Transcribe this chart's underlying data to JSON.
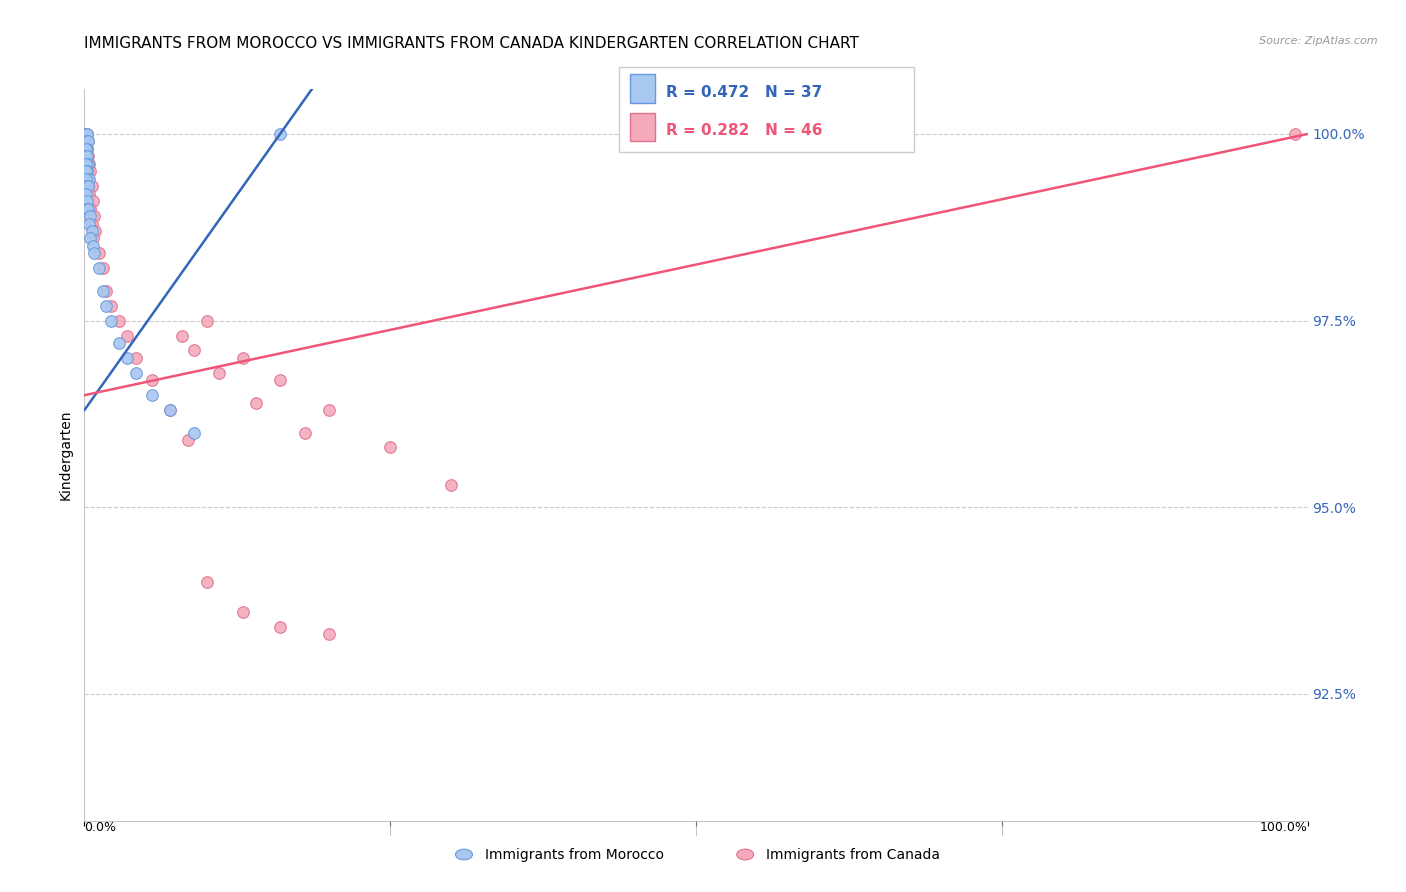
{
  "title": "IMMIGRANTS FROM MOROCCO VS IMMIGRANTS FROM CANADA KINDERGARTEN CORRELATION CHART",
  "source": "Source: ZipAtlas.com",
  "ylabel": "Kindergarten",
  "ytick_labels": [
    "100.0%",
    "97.5%",
    "95.0%",
    "92.5%"
  ],
  "ytick_values": [
    1.0,
    0.975,
    0.95,
    0.925
  ],
  "xlim": [
    0.0,
    1.0
  ],
  "ylim": [
    0.908,
    1.006
  ],
  "legend1_label": "R = 0.472   N = 37",
  "legend2_label": "R = 0.282   N = 46",
  "legend_bottom_label1": "Immigrants from Morocco",
  "legend_bottom_label2": "Immigrants from Canada",
  "morocco_color": "#A8C8F0",
  "canada_color": "#F4AABB",
  "morocco_edge": "#6699DD",
  "canada_edge": "#E07090",
  "background_color": "#ffffff",
  "grid_color": "#cccccc",
  "morocco_x": [
    0.001,
    0.002,
    0.001,
    0.003,
    0.002,
    0.001,
    0.001,
    0.002,
    0.003,
    0.001,
    0.002,
    0.001,
    0.004,
    0.001,
    0.002,
    0.003,
    0.001,
    0.002,
    0.001,
    0.003,
    0.005,
    0.004,
    0.006,
    0.005,
    0.007,
    0.008,
    0.012,
    0.015,
    0.018,
    0.022,
    0.028,
    0.035,
    0.042,
    0.055,
    0.07,
    0.09,
    0.16
  ],
  "morocco_y": [
    1.0,
    1.0,
    0.999,
    0.999,
    0.998,
    0.998,
    0.997,
    0.997,
    0.996,
    0.996,
    0.995,
    0.995,
    0.994,
    0.994,
    0.993,
    0.993,
    0.992,
    0.991,
    0.99,
    0.99,
    0.989,
    0.988,
    0.987,
    0.986,
    0.985,
    0.984,
    0.982,
    0.979,
    0.977,
    0.975,
    0.972,
    0.97,
    0.968,
    0.965,
    0.963,
    0.96,
    1.0
  ],
  "canada_x": [
    0.001,
    0.002,
    0.001,
    0.003,
    0.002,
    0.001,
    0.003,
    0.002,
    0.004,
    0.001,
    0.005,
    0.003,
    0.006,
    0.004,
    0.007,
    0.005,
    0.008,
    0.006,
    0.009,
    0.007,
    0.012,
    0.015,
    0.018,
    0.022,
    0.028,
    0.035,
    0.042,
    0.055,
    0.07,
    0.085,
    0.1,
    0.13,
    0.16,
    0.2,
    0.25,
    0.3,
    0.1,
    0.13,
    0.16,
    0.2,
    0.08,
    0.09,
    0.11,
    0.14,
    0.18,
    0.99
  ],
  "canada_y": [
    1.0,
    1.0,
    0.999,
    0.999,
    0.998,
    0.998,
    0.997,
    0.997,
    0.996,
    0.996,
    0.995,
    0.994,
    0.993,
    0.992,
    0.991,
    0.99,
    0.989,
    0.988,
    0.987,
    0.986,
    0.984,
    0.982,
    0.979,
    0.977,
    0.975,
    0.973,
    0.97,
    0.967,
    0.963,
    0.959,
    0.975,
    0.97,
    0.967,
    0.963,
    0.958,
    0.953,
    0.94,
    0.936,
    0.934,
    0.933,
    0.973,
    0.971,
    0.968,
    0.964,
    0.96,
    1.0
  ],
  "morocco_line": {
    "x0": 0.0,
    "y0": 0.963,
    "x1": 0.16,
    "y1": 1.0
  },
  "canada_line": {
    "x0": 0.0,
    "y0": 0.965,
    "x1": 1.0,
    "y1": 1.0
  },
  "title_fontsize": 11,
  "marker_size": 70
}
